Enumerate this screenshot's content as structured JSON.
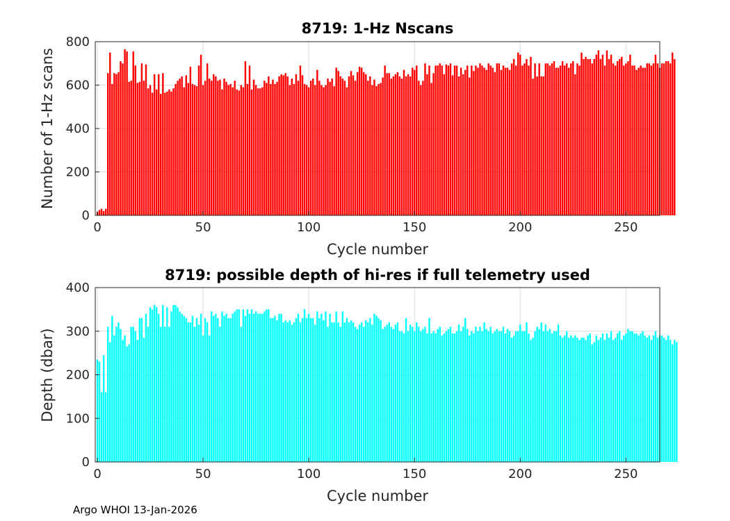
{
  "footer": "Argo WHOI 13-Jan-2026",
  "chart_data": [
    {
      "type": "bar",
      "title": "8719: 1-Hz Nscans",
      "xlabel": "Cycle number",
      "ylabel": "Number of 1-Hz scans",
      "color": "#ff0000",
      "xlim": [
        -1,
        266
      ],
      "ylim": [
        0,
        800
      ],
      "xticks": [
        0,
        50,
        100,
        150,
        200,
        250
      ],
      "yticks": [
        0,
        200,
        400,
        600,
        800
      ],
      "grid": true,
      "x_start": 0,
      "values": [
        15,
        25,
        30,
        20,
        30,
        655,
        750,
        605,
        655,
        650,
        660,
        710,
        700,
        765,
        755,
        615,
        620,
        755,
        690,
        610,
        615,
        700,
        620,
        695,
        585,
        600,
        565,
        650,
        580,
        650,
        560,
        655,
        565,
        570,
        580,
        570,
        585,
        605,
        620,
        630,
        640,
        590,
        645,
        610,
        685,
        605,
        600,
        595,
        690,
        740,
        600,
        620,
        700,
        630,
        620,
        650,
        640,
        620,
        625,
        580,
        630,
        615,
        600,
        605,
        590,
        620,
        580,
        575,
        600,
        590,
        710,
        605,
        690,
        580,
        625,
        600,
        585,
        585,
        590,
        620,
        610,
        640,
        605,
        625,
        605,
        615,
        640,
        650,
        645,
        655,
        640,
        600,
        630,
        605,
        650,
        620,
        690,
        645,
        605,
        600,
        590,
        620,
        630,
        600,
        670,
        620,
        600,
        590,
        600,
        630,
        615,
        630,
        595,
        680,
        665,
        640,
        630,
        620,
        590,
        640,
        665,
        645,
        620,
        660,
        685,
        680,
        660,
        650,
        620,
        640,
        600,
        625,
        595,
        605,
        610,
        635,
        690,
        655,
        655,
        630,
        640,
        650,
        660,
        640,
        630,
        670,
        640,
        650,
        640,
        680,
        670,
        690,
        620,
        600,
        620,
        700,
        650,
        690,
        610,
        655,
        690,
        690,
        700,
        690,
        650,
        695,
        690,
        700,
        645,
        690,
        690,
        640,
        680,
        650,
        670,
        690,
        635,
        690,
        665,
        690,
        680,
        700,
        690,
        680,
        670,
        700,
        690,
        680,
        660,
        700,
        700,
        670,
        690,
        680,
        680,
        670,
        700,
        720,
        690,
        750,
        740,
        690,
        700,
        720,
        690,
        730,
        630,
        700,
        640,
        700,
        640,
        640,
        700,
        700,
        690,
        700,
        710,
        680,
        680,
        690,
        710,
        690,
        700,
        680,
        700,
        710,
        650,
        700,
        690,
        750,
        720,
        730,
        720,
        720,
        700,
        720,
        740,
        760,
        720,
        740,
        690,
        760,
        720,
        740,
        700,
        690,
        710,
        720,
        730,
        690,
        700,
        710,
        740,
        690,
        690,
        670,
        680,
        690,
        680,
        680,
        700,
        700,
        690,
        700,
        740,
        700,
        680,
        700,
        700,
        710,
        710,
        700,
        750,
        720
      ]
    },
    {
      "type": "bar",
      "title": "8719: possible depth of hi-res if full telemetry used",
      "xlabel": "Cycle number",
      "ylabel": "Depth (dbar)",
      "color": "#00ffff",
      "xlim": [
        -1,
        266
      ],
      "ylim": [
        0,
        400
      ],
      "xticks": [
        0,
        50,
        100,
        150,
        200,
        250
      ],
      "yticks": [
        0,
        100,
        200,
        300,
        400
      ],
      "grid": true,
      "x_start": 0,
      "values": [
        235,
        230,
        160,
        245,
        160,
        310,
        275,
        335,
        290,
        310,
        320,
        305,
        280,
        290,
        265,
        270,
        310,
        310,
        300,
        280,
        330,
        330,
        285,
        340,
        310,
        355,
        350,
        360,
        355,
        340,
        310,
        360,
        310,
        355,
        310,
        345,
        360,
        360,
        355,
        345,
        340,
        335,
        330,
        320,
        320,
        335,
        310,
        330,
        315,
        340,
        290,
        330,
        320,
        290,
        345,
        335,
        340,
        330,
        310,
        345,
        335,
        340,
        330,
        330,
        340,
        345,
        350,
        350,
        310,
        350,
        335,
        350,
        340,
        350,
        340,
        345,
        340,
        340,
        340,
        345,
        350,
        350,
        330,
        330,
        335,
        325,
        340,
        340,
        320,
        325,
        320,
        325,
        315,
        320,
        330,
        340,
        320,
        330,
        350,
        330,
        340,
        330,
        330,
        315,
        345,
        330,
        340,
        325,
        345,
        310,
        340,
        320,
        320,
        345,
        320,
        310,
        345,
        320,
        330,
        320,
        325,
        320,
        310,
        305,
        315,
        320,
        310,
        325,
        320,
        330,
        315,
        340,
        335,
        330,
        325,
        305,
        310,
        315,
        320,
        310,
        305,
        315,
        320,
        300,
        300,
        295,
        330,
        300,
        315,
        310,
        300,
        320,
        310,
        300,
        305,
        310,
        295,
        330,
        295,
        300,
        295,
        305,
        310,
        290,
        295,
        300,
        305,
        310,
        295,
        295,
        300,
        315,
        300,
        310,
        330,
        305,
        290,
        300,
        295,
        310,
        300,
        310,
        300,
        320,
        305,
        300,
        310,
        295,
        300,
        305,
        300,
        300,
        310,
        295,
        305,
        300,
        285,
        290,
        300,
        300,
        315,
        300,
        300,
        320,
        295,
        280,
        285,
        300,
        310,
        305,
        320,
        300,
        315,
        300,
        305,
        295,
        300,
        300,
        315,
        290,
        285,
        290,
        300,
        285,
        290,
        285,
        290,
        285,
        280,
        285,
        285,
        280,
        290,
        295,
        270,
        275,
        290,
        280,
        285,
        295,
        280,
        295,
        285,
        300,
        280,
        285,
        295,
        300,
        280,
        290,
        295,
        305,
        300,
        300,
        295,
        295,
        290,
        295,
        300,
        290,
        285,
        290,
        280,
        290,
        300,
        285,
        290,
        290,
        285,
        280,
        290,
        280,
        270,
        280,
        275
      ]
    }
  ]
}
